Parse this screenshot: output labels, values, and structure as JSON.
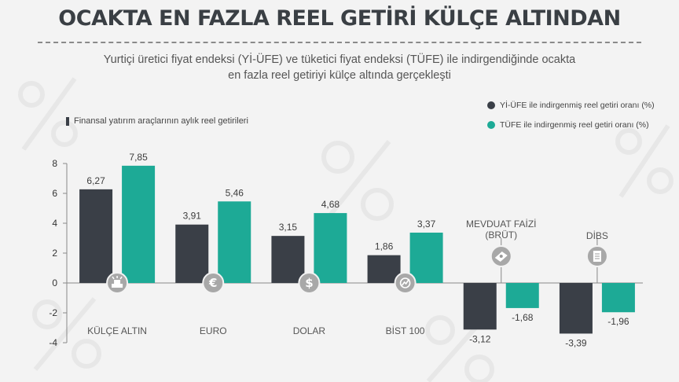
{
  "header": {
    "title": "OCAKTA EN FAZLA REEL GETİRİ KÜLÇE ALTINDAN",
    "subtitle_line1": "Yurtiçi üretici fiyat endeksi (Yİ-ÜFE) ve tüketici fiyat endeksi (TÜFE) ile indirgendiğinde ocakta",
    "subtitle_line2": "en fazla reel getiriyi külçe altında gerçekleşti"
  },
  "legend": {
    "section_label": "Finansal yatırım araçlarının aylık reel getirileri",
    "series1_label": "Yİ-ÜFE ile indirgenmiş reel getiri oranı (%)",
    "series2_label": "TÜFE ile indirgenmiş reel getiri oranı (%)"
  },
  "colors": {
    "series1": "#3a3f47",
    "series2": "#1daa96",
    "axis": "#888888",
    "background": "#f3f3f3"
  },
  "chart_data": {
    "type": "bar",
    "categories": [
      "KÜLÇE ALTIN",
      "EURO",
      "DOLAR",
      "BİST 100",
      "MEVDUAT FAİZİ (BRÜT)",
      "DİBS"
    ],
    "category_label_lines": [
      [
        "KÜLÇE ALTIN"
      ],
      [
        "EURO"
      ],
      [
        "DOLAR"
      ],
      [
        "BİST 100"
      ],
      [
        "MEVDUAT FAİZİ",
        "(BRÜT)"
      ],
      [
        "DİBS"
      ]
    ],
    "category_icons": [
      "gold-bar-icon",
      "euro-icon",
      "dollar-icon",
      "stock-index-icon",
      "deposit-icon",
      "document-icon"
    ],
    "series": [
      {
        "name": "Yİ-ÜFE ile indirgenmiş reel getiri oranı (%)",
        "values": [
          6.27,
          3.91,
          3.15,
          1.86,
          -3.12,
          -3.39
        ],
        "labels": [
          "6,27",
          "3,91",
          "3,15",
          "1,86",
          "-3,12",
          "-3,39"
        ]
      },
      {
        "name": "TÜFE ile indirgenmiş reel getiri oranı (%)",
        "values": [
          7.85,
          5.46,
          4.68,
          3.37,
          -1.68,
          -1.96
        ],
        "labels": [
          "7,85",
          "5,46",
          "4,68",
          "3,37",
          "-1,68",
          "-1,96"
        ]
      }
    ],
    "yticks": [
      8,
      6,
      4,
      2,
      0,
      -2,
      -4
    ],
    "ylim": [
      -4,
      8
    ],
    "legend_position": "top-right",
    "grid": false
  }
}
